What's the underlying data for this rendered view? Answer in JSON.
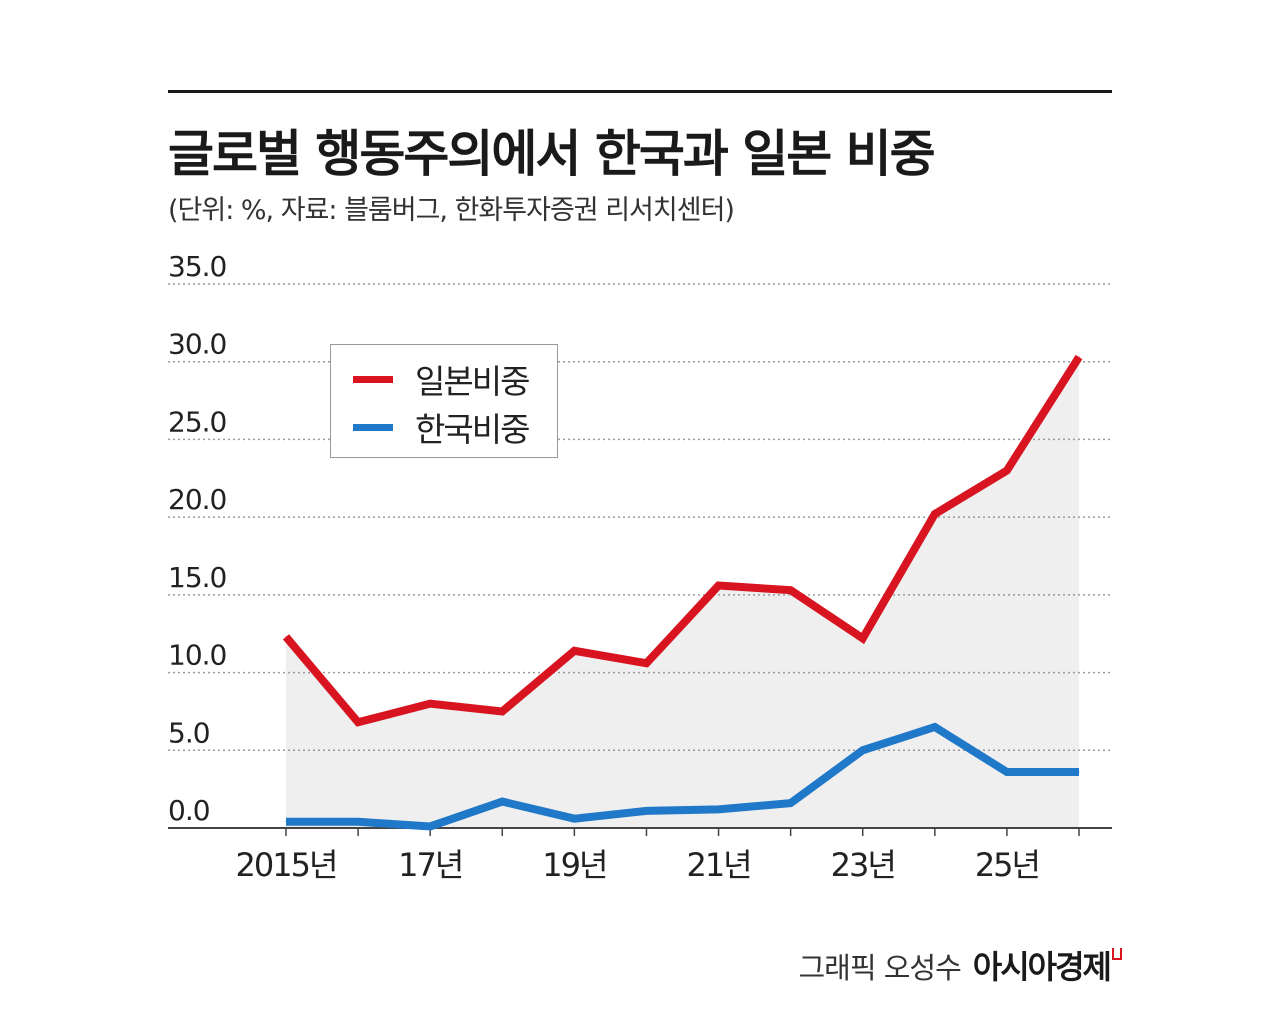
{
  "header": {
    "title": "글로벌 행동주의에서 한국과 일본 비중",
    "subtitle": "(단위: %, 자료: 블룸버그, 한화투자증권 리서치센터)"
  },
  "footer": {
    "credit": "그래픽 오성수",
    "publisher": "아시아경제"
  },
  "colors": {
    "japan": "#d7141f",
    "korea": "#1f78c8",
    "area": "#efefef",
    "grid": "#9a9a9a",
    "text": "#222222"
  },
  "chart_data": {
    "type": "line",
    "x": [
      2015,
      2016,
      2017,
      2018,
      2019,
      2020,
      2021,
      2022,
      2023,
      2024,
      2025,
      2026
    ],
    "x_tick_values": [
      2015,
      2017,
      2019,
      2021,
      2023,
      2025
    ],
    "x_tick_labels": [
      "2015년",
      "17년",
      "19년",
      "21년",
      "23년",
      "25년"
    ],
    "y_tick_labels": [
      "0.0",
      "5.0",
      "10.0",
      "15.0",
      "20.0",
      "25.0",
      "30.0",
      "35.0"
    ],
    "ylim": [
      0,
      35
    ],
    "grid": "horizontal dotted",
    "legend_position": "top-left",
    "area_under": "일본비중",
    "series": [
      {
        "name": "일본비중",
        "color": "#d7141f",
        "values": [
          12.3,
          6.8,
          8.0,
          7.5,
          11.4,
          10.6,
          15.6,
          15.3,
          12.2,
          20.2,
          23.0,
          30.3
        ]
      },
      {
        "name": "한국비중",
        "color": "#1f78c8",
        "values": [
          0.4,
          0.4,
          0.1,
          1.7,
          0.6,
          1.1,
          1.2,
          1.6,
          5.0,
          6.5,
          3.6,
          3.6
        ]
      }
    ]
  }
}
